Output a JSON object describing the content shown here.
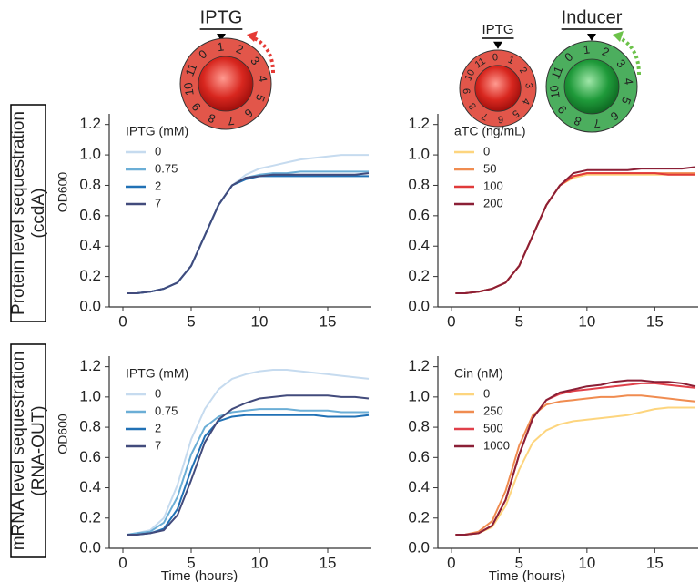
{
  "row_labels": [
    [
      "Protein level sequestration",
      "(ccdA)"
    ],
    [
      "mRNA level sequestration",
      "(RNA-OUT)"
    ]
  ],
  "dials": [
    {
      "label": "IPTG",
      "numbers": [
        "0",
        "1",
        "2",
        "3",
        "4",
        "5",
        "6",
        "7",
        "8",
        "9",
        "10",
        "11"
      ]
    },
    {
      "label": "IPTG",
      "numbers": [
        "0",
        "1",
        "2",
        "3",
        "4",
        "5",
        "6",
        "7",
        "8",
        "9",
        "10",
        "11"
      ]
    },
    {
      "label": "Inducer",
      "numbers": [
        "0",
        "1",
        "2",
        "3",
        "4",
        "5",
        "6",
        "7",
        "8",
        "9",
        "10",
        "11"
      ]
    }
  ],
  "chart_data": [
    {
      "type": "line",
      "ylabel": "OD600",
      "legend_title": "IPTG (mM)",
      "x": [
        0.3,
        1,
        2,
        3,
        4,
        5,
        6,
        7,
        8,
        9,
        10,
        11,
        12,
        13,
        14,
        15,
        16,
        17,
        18
      ],
      "xlim": [
        -1,
        18.2
      ],
      "xticks": [
        0,
        5,
        10,
        15
      ],
      "ylim": [
        0,
        1.27
      ],
      "yticks": [
        {
          "value": 0,
          "label": "0.0"
        },
        {
          "value": 0.2,
          "label": "0.2"
        },
        {
          "value": 0.4,
          "label": "0.4"
        },
        {
          "value": 0.6,
          "label": "0.6"
        },
        {
          "value": 0.8,
          "label": "0.8"
        },
        {
          "value": 1.0,
          "label": "1.0"
        },
        {
          "value": 1.2,
          "label": "1.2"
        }
      ],
      "series": [
        {
          "name": "0",
          "color": "#c6dbef",
          "values": [
            0.09,
            0.09,
            0.1,
            0.12,
            0.16,
            0.27,
            0.47,
            0.67,
            0.8,
            0.87,
            0.91,
            0.93,
            0.95,
            0.97,
            0.98,
            0.99,
            1.0,
            1.0,
            1.0
          ]
        },
        {
          "name": "0.75",
          "color": "#6baed6",
          "values": [
            0.09,
            0.09,
            0.1,
            0.12,
            0.16,
            0.27,
            0.47,
            0.67,
            0.8,
            0.85,
            0.87,
            0.88,
            0.88,
            0.89,
            0.89,
            0.89,
            0.89,
            0.89,
            0.89
          ]
        },
        {
          "name": "2",
          "color": "#2171b5",
          "values": [
            0.09,
            0.09,
            0.1,
            0.12,
            0.16,
            0.27,
            0.47,
            0.67,
            0.8,
            0.84,
            0.86,
            0.86,
            0.86,
            0.86,
            0.86,
            0.86,
            0.86,
            0.86,
            0.86
          ]
        },
        {
          "name": "7",
          "color": "#424b7c",
          "values": [
            0.09,
            0.09,
            0.1,
            0.12,
            0.16,
            0.27,
            0.47,
            0.67,
            0.8,
            0.85,
            0.86,
            0.87,
            0.87,
            0.87,
            0.87,
            0.87,
            0.87,
            0.87,
            0.88
          ]
        }
      ]
    },
    {
      "type": "line",
      "legend_title": "aTC (ng/mL)",
      "x": [
        0.3,
        1,
        2,
        3,
        4,
        5,
        6,
        7,
        8,
        9,
        10,
        11,
        12,
        13,
        14,
        15,
        16,
        17,
        18
      ],
      "xlim": [
        -1,
        18.2
      ],
      "xticks": [
        0,
        5,
        10,
        15
      ],
      "ylim": [
        0,
        1.27
      ],
      "yticks": [
        {
          "value": 0,
          "label": "0.0"
        },
        {
          "value": 0.2,
          "label": "0.2"
        },
        {
          "value": 0.4,
          "label": "0.4"
        },
        {
          "value": 0.6,
          "label": "0.6"
        },
        {
          "value": 0.8,
          "label": "0.8"
        },
        {
          "value": 1.0,
          "label": "1.0"
        },
        {
          "value": 1.2,
          "label": "1.2"
        }
      ],
      "series": [
        {
          "name": "0",
          "color": "#fdd57e",
          "values": [
            0.09,
            0.09,
            0.1,
            0.12,
            0.16,
            0.27,
            0.47,
            0.67,
            0.8,
            0.85,
            0.87,
            0.87,
            0.87,
            0.87,
            0.87,
            0.87,
            0.87,
            0.87,
            0.87
          ]
        },
        {
          "name": "50",
          "color": "#f08c50",
          "values": [
            0.09,
            0.09,
            0.1,
            0.12,
            0.16,
            0.27,
            0.47,
            0.67,
            0.8,
            0.86,
            0.88,
            0.88,
            0.88,
            0.88,
            0.88,
            0.88,
            0.88,
            0.88,
            0.88
          ]
        },
        {
          "name": "100",
          "color": "#e03a3a",
          "values": [
            0.09,
            0.09,
            0.1,
            0.12,
            0.16,
            0.27,
            0.47,
            0.67,
            0.8,
            0.86,
            0.88,
            0.88,
            0.88,
            0.88,
            0.88,
            0.88,
            0.87,
            0.87,
            0.87
          ]
        },
        {
          "name": "200",
          "color": "#8b1f36",
          "values": [
            0.09,
            0.09,
            0.1,
            0.12,
            0.16,
            0.27,
            0.47,
            0.67,
            0.8,
            0.88,
            0.9,
            0.9,
            0.9,
            0.9,
            0.91,
            0.91,
            0.91,
            0.91,
            0.92
          ]
        }
      ]
    },
    {
      "type": "line",
      "ylabel": "OD600",
      "xlabel": "Time (hours)",
      "legend_title": "IPTG (mM)",
      "x": [
        0.3,
        1,
        2,
        3,
        4,
        5,
        6,
        7,
        8,
        9,
        10,
        11,
        12,
        13,
        14,
        15,
        16,
        17,
        18
      ],
      "xlim": [
        -1,
        18.2
      ],
      "xticks": [
        0,
        5,
        10,
        15
      ],
      "ylim": [
        0,
        1.27
      ],
      "yticks": [
        {
          "value": 0,
          "label": "0.0"
        },
        {
          "value": 0.2,
          "label": "0.2"
        },
        {
          "value": 0.4,
          "label": "0.4"
        },
        {
          "value": 0.6,
          "label": "0.6"
        },
        {
          "value": 0.8,
          "label": "0.8"
        },
        {
          "value": 1.0,
          "label": "1.0"
        },
        {
          "value": 1.2,
          "label": "1.2"
        }
      ],
      "series": [
        {
          "name": "0",
          "color": "#c6dbef",
          "values": [
            0.09,
            0.1,
            0.12,
            0.2,
            0.42,
            0.72,
            0.92,
            1.05,
            1.12,
            1.15,
            1.17,
            1.18,
            1.18,
            1.17,
            1.16,
            1.15,
            1.14,
            1.13,
            1.12
          ]
        },
        {
          "name": "0.75",
          "color": "#6baed6",
          "values": [
            0.09,
            0.1,
            0.11,
            0.17,
            0.34,
            0.62,
            0.8,
            0.87,
            0.9,
            0.91,
            0.92,
            0.92,
            0.92,
            0.91,
            0.91,
            0.91,
            0.9,
            0.9,
            0.9
          ]
        },
        {
          "name": "2",
          "color": "#2171b5",
          "values": [
            0.09,
            0.09,
            0.1,
            0.13,
            0.26,
            0.52,
            0.74,
            0.84,
            0.87,
            0.88,
            0.88,
            0.88,
            0.88,
            0.88,
            0.88,
            0.87,
            0.87,
            0.87,
            0.88
          ]
        },
        {
          "name": "7",
          "color": "#424b7c",
          "values": [
            0.09,
            0.09,
            0.1,
            0.12,
            0.22,
            0.45,
            0.7,
            0.85,
            0.92,
            0.96,
            0.99,
            1.0,
            1.01,
            1.01,
            1.01,
            1.01,
            1.0,
            1.0,
            0.99
          ]
        }
      ]
    },
    {
      "type": "line",
      "xlabel": "Time (hours)",
      "legend_title": "Cin (nM)",
      "x": [
        0.3,
        1,
        2,
        3,
        4,
        5,
        6,
        7,
        8,
        9,
        10,
        11,
        12,
        13,
        14,
        15,
        16,
        17,
        18
      ],
      "xlim": [
        -1,
        18.2
      ],
      "xticks": [
        0,
        5,
        10,
        15
      ],
      "ylim": [
        0,
        1.27
      ],
      "yticks": [
        {
          "value": 0,
          "label": "0.0"
        },
        {
          "value": 0.2,
          "label": "0.2"
        },
        {
          "value": 0.4,
          "label": "0.4"
        },
        {
          "value": 0.6,
          "label": "0.6"
        },
        {
          "value": 0.8,
          "label": "0.8"
        },
        {
          "value": 1.0,
          "label": "1.0"
        },
        {
          "value": 1.2,
          "label": "1.2"
        }
      ],
      "series": [
        {
          "name": "0",
          "color": "#fdd57e",
          "values": [
            0.09,
            0.09,
            0.1,
            0.14,
            0.28,
            0.52,
            0.7,
            0.78,
            0.82,
            0.84,
            0.85,
            0.86,
            0.87,
            0.88,
            0.9,
            0.92,
            0.93,
            0.93,
            0.93
          ]
        },
        {
          "name": "250",
          "color": "#f08c50",
          "values": [
            0.09,
            0.09,
            0.11,
            0.18,
            0.38,
            0.68,
            0.88,
            0.95,
            0.97,
            0.98,
            0.99,
            1.0,
            1.0,
            1.01,
            1.01,
            1.0,
            0.99,
            0.98,
            0.97
          ]
        },
        {
          "name": "500",
          "color": "#e0404a",
          "values": [
            0.09,
            0.09,
            0.1,
            0.15,
            0.32,
            0.62,
            0.86,
            0.98,
            1.02,
            1.04,
            1.05,
            1.06,
            1.07,
            1.08,
            1.09,
            1.09,
            1.08,
            1.07,
            1.06
          ]
        },
        {
          "name": "1000",
          "color": "#8b1f36",
          "values": [
            0.09,
            0.09,
            0.1,
            0.15,
            0.32,
            0.62,
            0.86,
            0.98,
            1.03,
            1.05,
            1.07,
            1.08,
            1.1,
            1.11,
            1.11,
            1.1,
            1.1,
            1.09,
            1.07
          ]
        }
      ]
    }
  ]
}
